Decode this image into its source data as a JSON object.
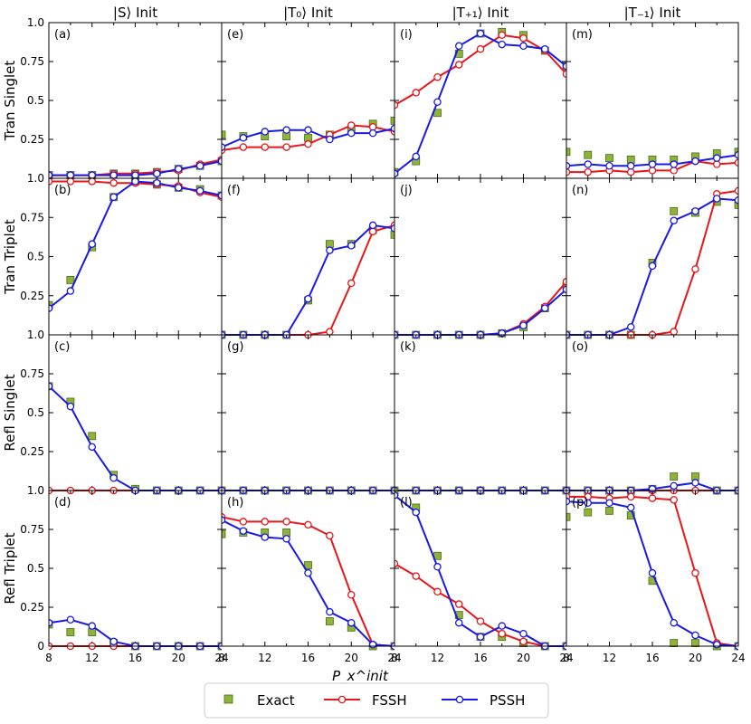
{
  "chart_data": {
    "type": "line",
    "columns": [
      "|S⟩ Init",
      "|T₀⟩ Init",
      "|T₊₁⟩ Init",
      "|T₋₁⟩ Init"
    ],
    "rows": [
      "Tran Singlet",
      "Tran Triplet",
      "Refl Singlet",
      "Refl Triplet"
    ],
    "xlabel": "P_x^init",
    "xlim": [
      8,
      24
    ],
    "x_ticks": [
      "8",
      "12",
      "16",
      "20",
      "24"
    ],
    "ylim": [
      0,
      1
    ],
    "y_ticks": [
      "0",
      "0.25",
      "0.5",
      "0.75",
      "1.0"
    ],
    "x": [
      8,
      10,
      12,
      14,
      16,
      18,
      20,
      22,
      24
    ],
    "colors": {
      "Exact": "#8db33a",
      "FSSH": "#e8161a",
      "PSSH": "#1a1ae6"
    },
    "legend": {
      "position": "bottom",
      "entries": [
        "Exact",
        "FSSH",
        "PSSH"
      ]
    },
    "panels": [
      {
        "label": "(a)",
        "row": 0,
        "col": 0,
        "exact": [
          0.02,
          0.02,
          0.02,
          0.03,
          0.03,
          0.04,
          0.06,
          0.08,
          0.11
        ],
        "fssh": [
          0.02,
          0.02,
          0.02,
          0.03,
          0.03,
          0.04,
          0.05,
          0.09,
          0.12
        ],
        "pssh": [
          0.02,
          0.02,
          0.02,
          0.02,
          0.02,
          0.03,
          0.06,
          0.08,
          0.11
        ]
      },
      {
        "label": "(b)",
        "row": 1,
        "col": 0,
        "exact": [
          0.19,
          0.35,
          0.56,
          0.88,
          0.98,
          0.96,
          0.94,
          0.93,
          0.89
        ],
        "fssh": [
          0.98,
          0.98,
          0.98,
          0.97,
          0.97,
          0.96,
          0.95,
          0.91,
          0.88
        ],
        "pssh": [
          0.17,
          0.28,
          0.58,
          0.88,
          0.98,
          0.97,
          0.94,
          0.92,
          0.89
        ]
      },
      {
        "label": "(c)",
        "row": 2,
        "col": 0,
        "exact": [
          0.67,
          0.57,
          0.35,
          0.1,
          0.01,
          0.0,
          0.0,
          0.0,
          0.0
        ],
        "fssh": [
          0.0,
          0.0,
          0.0,
          0.0,
          0.0,
          0.0,
          0.0,
          0.0,
          0.0
        ],
        "pssh": [
          0.67,
          0.54,
          0.28,
          0.08,
          0.0,
          0.0,
          0.0,
          0.0,
          0.0
        ]
      },
      {
        "label": "(d)",
        "row": 3,
        "col": 0,
        "exact": [
          0.14,
          0.09,
          0.09,
          0.02,
          0.0,
          0.0,
          0.0,
          0.0,
          0.0
        ],
        "fssh": [
          0.0,
          0.0,
          0.0,
          0.0,
          0.0,
          0.0,
          0.0,
          0.0,
          0.0
        ],
        "pssh": [
          0.15,
          0.17,
          0.13,
          0.03,
          0.0,
          0.0,
          0.0,
          0.0,
          0.0
        ]
      },
      {
        "label": "(e)",
        "row": 0,
        "col": 1,
        "exact": [
          0.28,
          0.27,
          0.27,
          0.27,
          0.26,
          0.28,
          0.31,
          0.35,
          0.37
        ],
        "fssh": [
          0.18,
          0.2,
          0.2,
          0.2,
          0.22,
          0.28,
          0.34,
          0.33,
          0.3
        ],
        "pssh": [
          0.2,
          0.26,
          0.3,
          0.31,
          0.31,
          0.25,
          0.29,
          0.29,
          0.32
        ]
      },
      {
        "label": "(f)",
        "row": 1,
        "col": 1,
        "exact": [
          0.0,
          0.0,
          0.0,
          0.0,
          0.22,
          0.58,
          0.58,
          0.67,
          0.64
        ],
        "fssh": [
          0.0,
          0.0,
          0.0,
          0.0,
          0.0,
          0.02,
          0.33,
          0.66,
          0.7
        ],
        "pssh": [
          0.0,
          0.0,
          0.0,
          0.0,
          0.23,
          0.54,
          0.57,
          0.7,
          0.68
        ]
      },
      {
        "label": "(g)",
        "row": 2,
        "col": 1,
        "exact": [
          0.0,
          0.0,
          0.0,
          0.0,
          0.0,
          0.0,
          0.0,
          0.0,
          0.0
        ],
        "fssh": [
          0.0,
          0.0,
          0.0,
          0.0,
          0.0,
          0.0,
          0.0,
          0.0,
          0.0
        ],
        "pssh": [
          0.0,
          0.0,
          0.0,
          0.0,
          0.0,
          0.0,
          0.0,
          0.0,
          0.0
        ]
      },
      {
        "label": "(h)",
        "row": 3,
        "col": 1,
        "exact": [
          0.72,
          0.73,
          0.73,
          0.73,
          0.52,
          0.16,
          0.12,
          0.0,
          0.0
        ],
        "fssh": [
          0.83,
          0.8,
          0.8,
          0.8,
          0.78,
          0.71,
          0.33,
          0.01,
          0.0
        ],
        "pssh": [
          0.81,
          0.74,
          0.7,
          0.69,
          0.47,
          0.22,
          0.15,
          0.01,
          0.0
        ]
      },
      {
        "label": "(i)",
        "row": 0,
        "col": 2,
        "exact": [
          0.04,
          0.11,
          0.42,
          0.8,
          0.93,
          0.94,
          0.92,
          0.82,
          0.72
        ],
        "fssh": [
          0.47,
          0.55,
          0.65,
          0.73,
          0.83,
          0.92,
          0.9,
          0.82,
          0.67
        ],
        "pssh": [
          0.03,
          0.14,
          0.49,
          0.85,
          0.93,
          0.86,
          0.85,
          0.83,
          0.72
        ]
      },
      {
        "label": "(j)",
        "row": 1,
        "col": 2,
        "exact": [
          0.0,
          0.0,
          0.0,
          0.0,
          0.0,
          0.01,
          0.05,
          0.17,
          0.31
        ],
        "fssh": [
          0.0,
          0.0,
          0.0,
          0.0,
          0.0,
          0.01,
          0.07,
          0.18,
          0.34
        ],
        "pssh": [
          0.0,
          0.0,
          0.0,
          0.0,
          0.0,
          0.01,
          0.06,
          0.17,
          0.29
        ]
      },
      {
        "label": "(k)",
        "row": 2,
        "col": 2,
        "exact": [
          0.0,
          0.0,
          0.0,
          0.0,
          0.0,
          0.0,
          0.0,
          0.0,
          0.0
        ],
        "fssh": [
          0.0,
          0.0,
          0.0,
          0.0,
          0.0,
          0.0,
          0.0,
          0.0,
          0.0
        ],
        "pssh": [
          0.0,
          0.0,
          0.0,
          0.0,
          0.0,
          0.0,
          0.0,
          0.0,
          0.0
        ]
      },
      {
        "label": "(l)",
        "row": 3,
        "col": 2,
        "exact": [
          0.99,
          0.89,
          0.58,
          0.2,
          0.06,
          0.06,
          0.02,
          0.0,
          0.0
        ],
        "fssh": [
          0.53,
          0.45,
          0.35,
          0.27,
          0.16,
          0.08,
          0.03,
          0.0,
          0.0
        ],
        "pssh": [
          0.97,
          0.86,
          0.51,
          0.15,
          0.06,
          0.13,
          0.08,
          0.0,
          0.0
        ]
      },
      {
        "label": "(m)",
        "row": 0,
        "col": 3,
        "exact": [
          0.17,
          0.15,
          0.13,
          0.12,
          0.12,
          0.12,
          0.14,
          0.16,
          0.17
        ],
        "fssh": [
          0.04,
          0.04,
          0.05,
          0.04,
          0.05,
          0.05,
          0.11,
          0.09,
          0.1
        ],
        "pssh": [
          0.08,
          0.09,
          0.08,
          0.08,
          0.09,
          0.09,
          0.11,
          0.13,
          0.15
        ]
      },
      {
        "label": "(n)",
        "row": 1,
        "col": 3,
        "exact": [
          0.0,
          0.0,
          0.0,
          0.0,
          0.46,
          0.79,
          0.78,
          0.85,
          0.83
        ],
        "fssh": [
          0.0,
          0.0,
          0.0,
          0.0,
          0.0,
          0.02,
          0.42,
          0.9,
          0.92
        ],
        "pssh": [
          0.0,
          0.0,
          0.0,
          0.05,
          0.44,
          0.73,
          0.79,
          0.87,
          0.86
        ]
      },
      {
        "label": "(o)",
        "row": 2,
        "col": 3,
        "exact": [
          0.0,
          0.0,
          0.0,
          0.0,
          0.01,
          0.09,
          0.09,
          0.0,
          0.0
        ],
        "fssh": [
          0.0,
          0.0,
          0.0,
          0.0,
          0.0,
          0.0,
          0.0,
          0.0,
          0.0
        ],
        "pssh": [
          0.0,
          0.0,
          0.0,
          0.0,
          0.01,
          0.03,
          0.05,
          0.0,
          0.0
        ]
      },
      {
        "label": "(p)",
        "row": 3,
        "col": 3,
        "exact": [
          0.83,
          0.86,
          0.87,
          0.84,
          0.42,
          0.02,
          0.02,
          0.0,
          0.0
        ],
        "fssh": [
          0.96,
          0.96,
          0.95,
          0.96,
          0.95,
          0.94,
          0.47,
          0.02,
          0.0
        ],
        "pssh": [
          0.93,
          0.92,
          0.92,
          0.89,
          0.47,
          0.15,
          0.07,
          0.01,
          0.0
        ]
      }
    ]
  }
}
